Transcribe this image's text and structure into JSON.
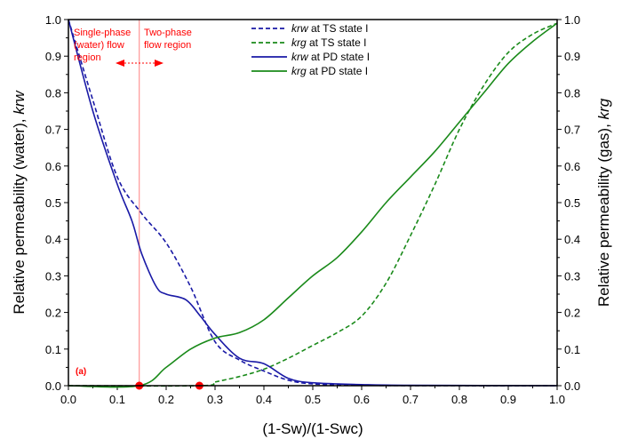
{
  "chart_data": {
    "type": "line",
    "xlabel": "(1-Sw)/(1-Swc)",
    "ylabel_left": "Relative permeability (water), krw",
    "ylabel_left_plain": "Relative permeability (water), ",
    "ylabel_left_italic": "krw",
    "ylabel_right_plain": "Relative permeability (gas), ",
    "ylabel_right_italic": "krg",
    "xlim": [
      0,
      1
    ],
    "ylim": [
      0,
      1
    ],
    "xticks": [
      "0.0",
      "0.1",
      "0.2",
      "0.3",
      "0.4",
      "0.5",
      "0.6",
      "0.7",
      "0.8",
      "0.9",
      "1.0"
    ],
    "yticks": [
      "0.0",
      "0.1",
      "0.2",
      "0.3",
      "0.4",
      "0.5",
      "0.6",
      "0.7",
      "0.8",
      "0.9",
      "1.0"
    ],
    "legend_position": "top-center",
    "series": [
      {
        "name_italic": "krw",
        "name_rest": " at TS state I",
        "color": "#1a1aa6",
        "dash": true,
        "x": [
          0,
          0.05,
          0.1,
          0.15,
          0.2,
          0.25,
          0.3,
          0.35,
          0.4,
          0.45,
          0.5,
          0.6,
          0.8,
          1.0
        ],
        "y": [
          1,
          0.78,
          0.57,
          0.47,
          0.39,
          0.27,
          0.12,
          0.07,
          0.04,
          0.015,
          0.005,
          0.001,
          0,
          0
        ]
      },
      {
        "name_italic": "krg",
        "name_rest": " at TS state I",
        "color": "#1a8a1a",
        "dash": true,
        "x": [
          0,
          0.268,
          0.3,
          0.35,
          0.4,
          0.45,
          0.5,
          0.55,
          0.6,
          0.65,
          0.7,
          0.75,
          0.8,
          0.85,
          0.9,
          0.95,
          1.0
        ],
        "y": [
          0,
          0,
          0.01,
          0.025,
          0.045,
          0.075,
          0.11,
          0.145,
          0.19,
          0.28,
          0.41,
          0.55,
          0.7,
          0.82,
          0.91,
          0.96,
          0.99
        ]
      },
      {
        "name_italic": "krw",
        "name_rest": " at PD state I",
        "color": "#1a1aa6",
        "dash": false,
        "x": [
          0,
          0.05,
          0.1,
          0.13,
          0.15,
          0.18,
          0.2,
          0.24,
          0.27,
          0.3,
          0.35,
          0.4,
          0.45,
          0.5,
          0.6,
          0.7,
          1.0
        ],
        "y": [
          1,
          0.75,
          0.55,
          0.45,
          0.36,
          0.27,
          0.25,
          0.235,
          0.19,
          0.14,
          0.075,
          0.06,
          0.02,
          0.008,
          0.003,
          0.001,
          0
        ]
      },
      {
        "name_italic": "krg",
        "name_rest": " at PD state I",
        "color": "#1a8a1a",
        "dash": false,
        "x": [
          0,
          0.145,
          0.2,
          0.25,
          0.3,
          0.35,
          0.4,
          0.45,
          0.5,
          0.55,
          0.6,
          0.65,
          0.7,
          0.75,
          0.8,
          0.85,
          0.9,
          0.95,
          1.0
        ],
        "y": [
          0,
          0,
          0.05,
          0.1,
          0.13,
          0.145,
          0.18,
          0.24,
          0.3,
          0.35,
          0.42,
          0.5,
          0.57,
          0.64,
          0.72,
          0.8,
          0.88,
          0.94,
          0.99
        ]
      }
    ],
    "vertical_line_x": 0.145,
    "markers": [
      {
        "x": 0.145,
        "y": 0
      },
      {
        "x": 0.268,
        "y": 0
      }
    ],
    "annotations": {
      "single_phase_1": "Single-phase",
      "single_phase_2": "(water) flow",
      "single_phase_3": "region",
      "two_phase_1": "Two-phase",
      "two_phase_2": "flow region",
      "panel_label": "(a)"
    },
    "annotation_color": "#ff0000"
  }
}
